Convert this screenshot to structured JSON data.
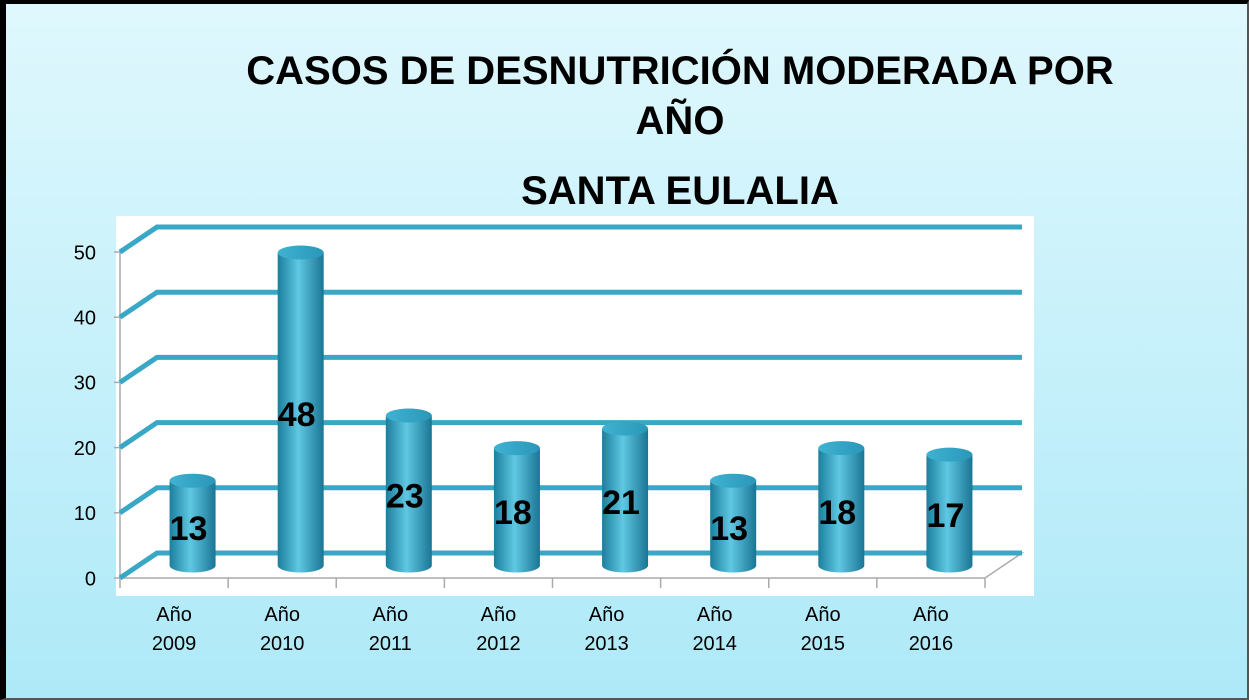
{
  "chart_data": {
    "type": "bar3d",
    "title": "CASOS DE DESNUTRICIÓN MODERADA POR AÑO",
    "subtitle": "SANTA EULALIA",
    "categories": [
      "Año 2009",
      "Año 2010",
      "Año 2011",
      "Año 2012",
      "Año 2013",
      "Año 2014",
      "Año 2015",
      "Año 2016"
    ],
    "values": [
      13,
      48,
      23,
      18,
      21,
      13,
      18,
      17
    ],
    "color": "#2a9cc0",
    "ylim": [
      0,
      50
    ],
    "yticks": [
      0,
      10,
      20,
      30,
      40,
      50
    ],
    "grid": true
  }
}
